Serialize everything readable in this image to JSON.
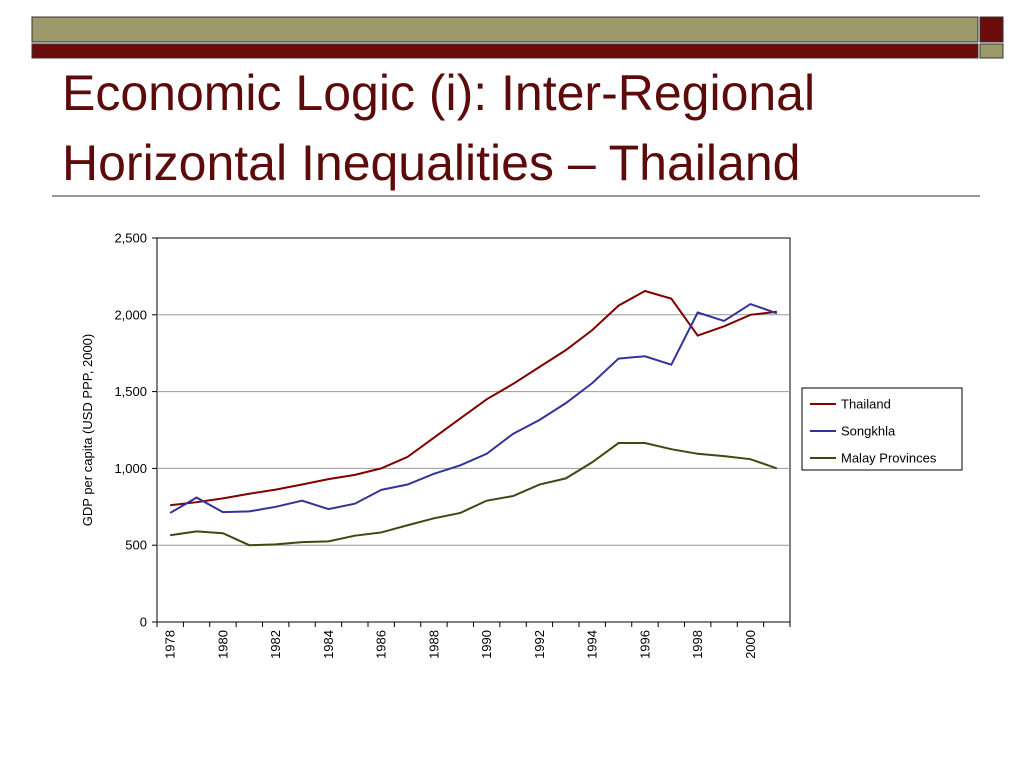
{
  "chart_data": {
    "type": "line",
    "title": "Economic Logic (i): Inter-Regional Horizontal Inequalities – Thailand",
    "y_label": "GDP per capita (USD PPP, 2000)",
    "categories": [
      "1978",
      null,
      "1980",
      null,
      "1982",
      null,
      "1984",
      null,
      "1986",
      null,
      "1988",
      null,
      "1990",
      null,
      "1992",
      null,
      "1994",
      null,
      "1996",
      null,
      "1998",
      null,
      "2000",
      null
    ],
    "series": [
      {
        "name": "Thailand",
        "color": "#800000",
        "values": [
          760,
          780,
          805,
          835,
          862,
          895,
          930,
          958,
          1000,
          1075,
          1200,
          1325,
          1450,
          1550,
          1660,
          1770,
          1900,
          2060,
          2155,
          2105,
          1865,
          1925,
          2000,
          2020
        ]
      },
      {
        "name": "Songkhla",
        "color": "#333399",
        "values": [
          710,
          810,
          715,
          720,
          750,
          790,
          735,
          770,
          860,
          895,
          965,
          1020,
          1095,
          1225,
          1315,
          1425,
          1555,
          1715,
          1730,
          1675,
          2015,
          1960,
          2070,
          2010
        ]
      },
      {
        "name": "Malay Provinces",
        "color": "#3b4a10",
        "values": [
          565,
          590,
          578,
          500,
          505,
          520,
          525,
          562,
          583,
          630,
          675,
          710,
          790,
          820,
          895,
          935,
          1040,
          1165,
          1165,
          1125,
          1095,
          1080,
          1060,
          1000
        ]
      }
    ],
    "ylim": [
      0,
      2500
    ],
    "yticks": [
      0,
      500,
      {
        "value": 1000,
        "label": "1,000"
      },
      {
        "value": 1500,
        "label": "1,500"
      },
      {
        "value": 2000,
        "label": "2,000"
      },
      {
        "value": 2500,
        "label": "2,500"
      }
    ],
    "grid": true,
    "legend": "right"
  }
}
